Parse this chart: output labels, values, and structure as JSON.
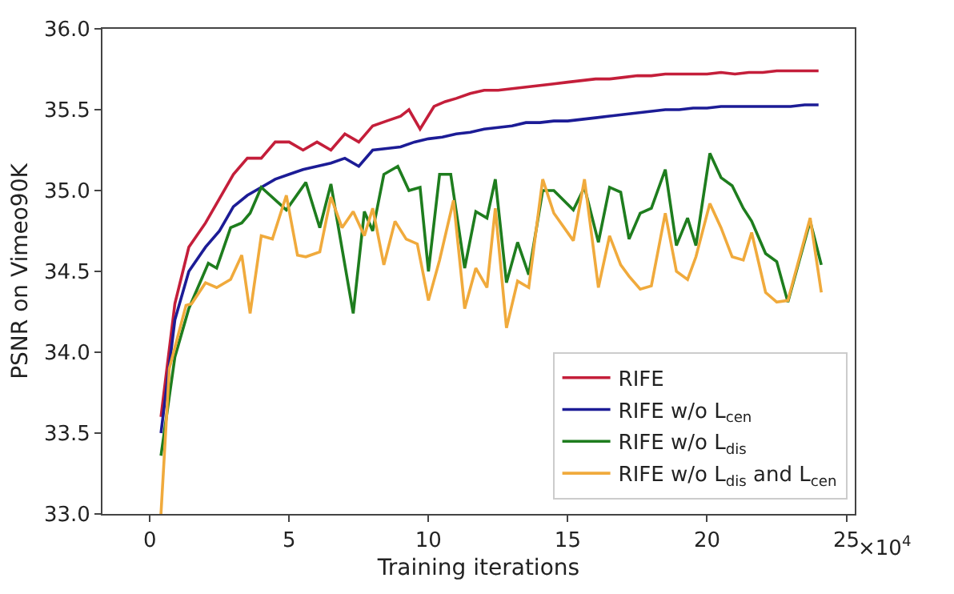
{
  "chart_data": {
    "type": "line",
    "xlabel": "Training iterations",
    "ylabel": "PSNR on Vimeo90K",
    "annotations": [
      "×10$^{4}$"
    ],
    "xlim": [
      -1.7,
      25.3
    ],
    "xticks": [
      0,
      5,
      10,
      15,
      20,
      25
    ],
    "ylim": [
      33.0,
      36.0
    ],
    "yticks": [
      {
        "value": 33.0,
        "label": "33.0"
      },
      {
        "value": 33.5,
        "label": "33.5"
      },
      {
        "value": 34.0,
        "label": "34.0"
      },
      {
        "value": 34.5,
        "label": "34.5"
      },
      {
        "value": 35.0,
        "label": "35.0"
      },
      {
        "value": 35.5,
        "label": "35.5"
      },
      {
        "value": 36.0,
        "label": "36.0"
      }
    ],
    "legend": "bottom right",
    "marker": "none",
    "line_style": "solid",
    "series": [
      {
        "name": "RIFE",
        "color": "#c41e3a",
        "x": [
          0.4,
          0.9,
          1.4,
          2.0,
          2.5,
          3.0,
          3.5,
          4.0,
          4.5,
          5.0,
          5.5,
          6.0,
          6.5,
          7.0,
          7.5,
          8.0,
          8.5,
          9.0,
          9.3,
          9.7,
          10.2,
          10.6,
          11.0,
          11.5,
          12.0,
          12.5,
          13.0,
          13.5,
          14.0,
          14.5,
          15.0,
          15.5,
          16.0,
          16.5,
          17.0,
          17.5,
          18.0,
          18.5,
          19.0,
          19.5,
          20.0,
          20.5,
          21.0,
          21.5,
          22.0,
          22.5,
          23.0,
          23.5,
          24.0
        ],
        "values": [
          33.6,
          34.3,
          34.65,
          34.8,
          34.95,
          35.1,
          35.2,
          35.2,
          35.3,
          35.3,
          35.25,
          35.3,
          35.25,
          35.35,
          35.3,
          35.4,
          35.43,
          35.46,
          35.5,
          35.38,
          35.52,
          35.55,
          35.57,
          35.6,
          35.62,
          35.62,
          35.63,
          35.64,
          35.65,
          35.66,
          35.67,
          35.68,
          35.69,
          35.69,
          35.7,
          35.71,
          35.71,
          35.72,
          35.72,
          35.72,
          35.72,
          35.73,
          35.72,
          35.73,
          35.73,
          35.74,
          35.74,
          35.74,
          35.74
        ]
      },
      {
        "name": "RIFE w/o L$_{cen}$",
        "color": "#1c1c96",
        "x": [
          0.4,
          0.9,
          1.4,
          2.0,
          2.5,
          3.0,
          3.5,
          4.0,
          4.5,
          5.0,
          5.5,
          6.0,
          6.5,
          7.0,
          7.5,
          8.0,
          8.5,
          9.0,
          9.5,
          10.0,
          10.5,
          11.0,
          11.5,
          12.0,
          12.5,
          13.0,
          13.5,
          14.0,
          14.5,
          15.0,
          15.5,
          16.0,
          16.5,
          17.0,
          17.5,
          18.0,
          18.5,
          19.0,
          19.5,
          20.0,
          20.5,
          21.0,
          21.5,
          22.0,
          22.5,
          23.0,
          23.5,
          24.0
        ],
        "values": [
          33.5,
          34.2,
          34.5,
          34.65,
          34.75,
          34.9,
          34.97,
          35.02,
          35.07,
          35.1,
          35.13,
          35.15,
          35.17,
          35.2,
          35.15,
          35.25,
          35.26,
          35.27,
          35.3,
          35.32,
          35.33,
          35.35,
          35.36,
          35.38,
          35.39,
          35.4,
          35.42,
          35.42,
          35.43,
          35.43,
          35.44,
          35.45,
          35.46,
          35.47,
          35.48,
          35.49,
          35.5,
          35.5,
          35.51,
          35.51,
          35.52,
          35.52,
          35.52,
          35.52,
          35.52,
          35.52,
          35.53,
          35.53
        ]
      },
      {
        "name": "RIFE w/o L$_{dis}$",
        "color": "#1e7d1e",
        "x": [
          0.4,
          0.9,
          1.4,
          2.1,
          2.4,
          2.9,
          3.3,
          3.6,
          4.0,
          4.9,
          5.6,
          6.1,
          6.5,
          7.3,
          7.7,
          8.0,
          8.4,
          8.9,
          9.3,
          9.7,
          10.0,
          10.4,
          10.8,
          11.3,
          11.7,
          12.1,
          12.4,
          12.8,
          13.2,
          13.6,
          14.1,
          14.5,
          15.2,
          15.6,
          16.1,
          16.5,
          16.9,
          17.2,
          17.6,
          18.0,
          18.5,
          18.9,
          19.3,
          19.6,
          20.1,
          20.5,
          20.9,
          21.3,
          21.6,
          22.1,
          22.5,
          22.9,
          23.7,
          24.1
        ],
        "values": [
          33.36,
          33.97,
          34.27,
          34.55,
          34.52,
          34.77,
          34.8,
          34.86,
          35.02,
          34.88,
          35.05,
          34.77,
          35.04,
          34.24,
          34.87,
          34.75,
          35.1,
          35.15,
          35.0,
          35.02,
          34.5,
          35.1,
          35.1,
          34.52,
          34.87,
          34.83,
          35.07,
          34.43,
          34.68,
          34.48,
          35.0,
          35.0,
          34.88,
          35.02,
          34.68,
          35.02,
          34.99,
          34.7,
          34.86,
          34.89,
          35.13,
          34.66,
          34.83,
          34.66,
          35.23,
          35.08,
          35.03,
          34.89,
          34.81,
          34.61,
          34.56,
          34.31,
          34.81,
          34.54
        ]
      },
      {
        "name": "RIFE w/o L$_{dis}$ and L$_{cen}$",
        "color": "#f0aa3c",
        "x": [
          0.4,
          0.7,
          1.3,
          1.5,
          2.0,
          2.4,
          2.9,
          3.3,
          3.6,
          4.0,
          4.4,
          4.9,
          5.3,
          5.6,
          6.1,
          6.5,
          6.9,
          7.3,
          7.7,
          8.0,
          8.4,
          8.8,
          9.2,
          9.6,
          10.0,
          10.4,
          10.9,
          11.3,
          11.7,
          12.1,
          12.4,
          12.8,
          13.2,
          13.6,
          14.1,
          14.5,
          15.2,
          15.6,
          16.1,
          16.5,
          16.9,
          17.2,
          17.6,
          18.0,
          18.5,
          18.9,
          19.3,
          19.6,
          20.1,
          20.5,
          20.9,
          21.3,
          21.6,
          22.1,
          22.5,
          22.9,
          23.7,
          24.1
        ],
        "values": [
          33.0,
          33.9,
          34.29,
          34.3,
          34.43,
          34.4,
          34.45,
          34.6,
          34.24,
          34.72,
          34.7,
          34.97,
          34.6,
          34.59,
          34.62,
          34.96,
          34.77,
          34.87,
          34.72,
          34.89,
          34.54,
          34.81,
          34.7,
          34.67,
          34.32,
          34.57,
          34.94,
          34.27,
          34.52,
          34.4,
          34.89,
          34.15,
          34.44,
          34.4,
          35.07,
          34.86,
          34.69,
          35.07,
          34.4,
          34.72,
          34.54,
          34.47,
          34.39,
          34.41,
          34.86,
          34.5,
          34.45,
          34.59,
          34.92,
          34.77,
          34.59,
          34.57,
          34.74,
          34.37,
          34.31,
          34.32,
          34.83,
          34.37
        ]
      }
    ]
  }
}
